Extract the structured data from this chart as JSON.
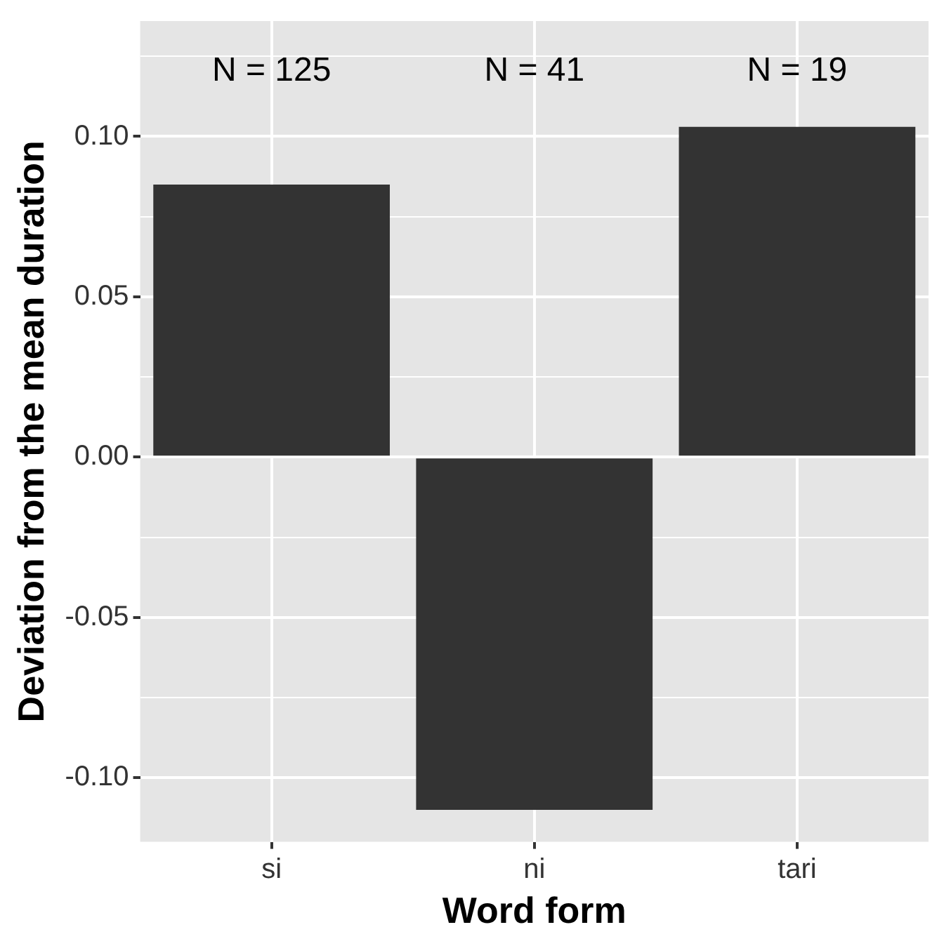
{
  "chart_data": {
    "type": "bar",
    "xlabel": "Word form",
    "ylabel": "Deviation from the mean duration",
    "categories": [
      "si",
      "ni",
      "tari"
    ],
    "values": [
      0.085,
      -0.11,
      0.103
    ],
    "color": "#333333",
    "ylim": [
      -0.12,
      0.136
    ],
    "yticks": [
      {
        "value": -0.1,
        "label": "-0.10"
      },
      {
        "value": -0.075,
        "label": null
      },
      {
        "value": -0.05,
        "label": "-0.05"
      },
      {
        "value": -0.025,
        "label": null
      },
      {
        "value": 0,
        "label": "0.00"
      },
      {
        "value": 0.025,
        "label": null
      },
      {
        "value": 0.05,
        "label": "0.05"
      },
      {
        "value": 0.075,
        "label": null
      },
      {
        "value": 0.1,
        "label": "0.10"
      },
      {
        "value": 0.125,
        "label": null
      }
    ],
    "annotations": [
      "N = 125",
      "N = 41",
      "N = 19"
    ],
    "grid": true,
    "legend": false
  }
}
